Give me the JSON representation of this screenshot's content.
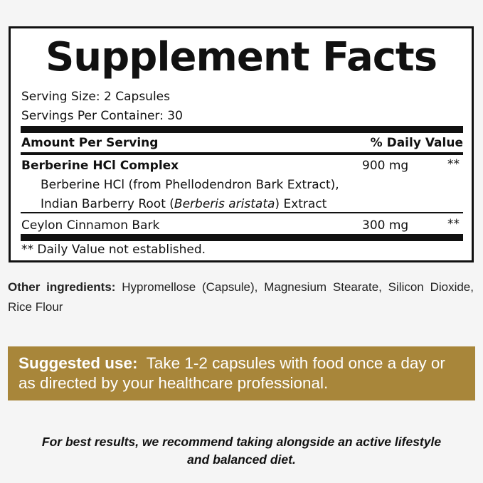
{
  "label": {
    "title": "Supplement Facts",
    "serving_size": "Serving Size: 2 Capsules",
    "servings_per_container": "Servings Per Container: 30",
    "header_amount": "Amount Per Serving",
    "header_dv": "% Daily Value",
    "rows": [
      {
        "name": "Berberine HCl Complex",
        "amount": "900 mg",
        "dv": "**",
        "sub1": "Berberine HCl (from Phellodendron Bark Extract),",
        "sub2_pre": "Indian Barberry Root (",
        "sub2_italic": "Berberis aristata",
        "sub2_post": ") Extract"
      },
      {
        "name": "Ceylon Cinnamon Bark",
        "amount": "300 mg",
        "dv": "**"
      }
    ],
    "footnote": "** Daily Value not established."
  },
  "other": {
    "label": "Other ingredients:",
    "text": " Hypromellose (Capsule), Magnesium Stearate, Silicon Dioxide, Rice Flour"
  },
  "suggested_use": {
    "label": "Suggested use:",
    "text": "  Take 1-2 capsules with food once a day or as directed by your healthcare professional."
  },
  "tip": {
    "line1": "For best results, we recommend taking alongside an active lifestyle",
    "line2": "and balanced diet."
  },
  "colors": {
    "accent": "#a8863a",
    "border": "#111111"
  }
}
